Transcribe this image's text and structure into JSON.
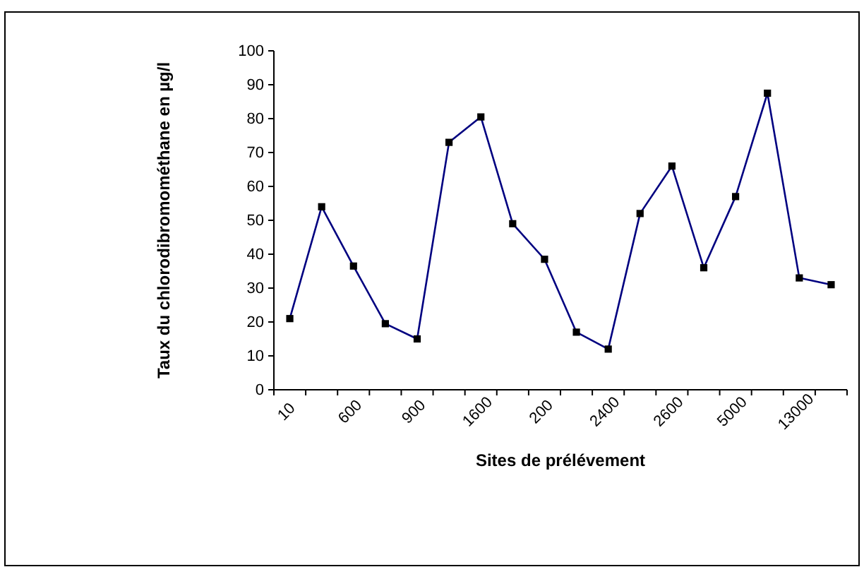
{
  "chart_data": {
    "type": "line",
    "xlabel": "Sites de prélévement",
    "ylabel": "Taux du chlorodibromométhane en µg/l",
    "categories": [
      "10",
      null,
      "600",
      null,
      "900",
      null,
      "1600",
      null,
      "200",
      null,
      "2400",
      null,
      "2600",
      null,
      "5000",
      null,
      "13000",
      null
    ],
    "series": [
      {
        "color": "#000080",
        "values": [
          21,
          54,
          36.5,
          19.5,
          15,
          73,
          80.5,
          49,
          38.5,
          17,
          12,
          52,
          66,
          36,
          57,
          87.5,
          33,
          31
        ]
      }
    ],
    "ylim": [
      0,
      100
    ],
    "yticks": [
      0,
      10,
      20,
      30,
      40,
      50,
      60,
      70,
      80,
      90,
      100
    ],
    "grid": false,
    "marker": "square",
    "line_style": "solid"
  }
}
